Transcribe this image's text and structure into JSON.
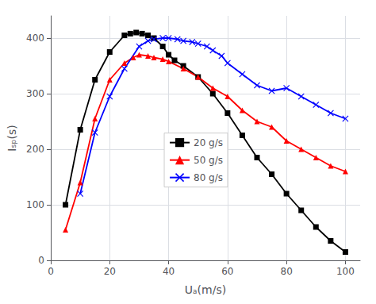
{
  "chart_data": {
    "type": "line",
    "xlabel": "Uₐ(m/s)",
    "ylabel": "Iₛₚ(s)",
    "series": [
      {
        "name": "20 g/s",
        "color": "black",
        "marker": "square",
        "x": [
          5,
          10,
          15,
          20,
          25,
          27,
          29,
          31,
          33,
          35,
          38,
          40,
          42,
          45,
          50,
          55,
          60,
          65,
          70,
          75,
          80,
          85,
          90,
          95,
          100
        ],
        "values": [
          100,
          235,
          325,
          375,
          405,
          408,
          410,
          408,
          405,
          400,
          385,
          370,
          360,
          350,
          330,
          300,
          265,
          225,
          185,
          155,
          120,
          90,
          60,
          35,
          15
        ]
      },
      {
        "name": "50 g/s",
        "color": "red",
        "marker": "triangle",
        "x": [
          5,
          10,
          15,
          20,
          25,
          28,
          30,
          33,
          35,
          38,
          40,
          45,
          50,
          55,
          60,
          65,
          70,
          75,
          80,
          85,
          90,
          95,
          100
        ],
        "values": [
          55,
          140,
          255,
          325,
          355,
          365,
          370,
          368,
          365,
          362,
          358,
          345,
          330,
          310,
          295,
          270,
          250,
          240,
          215,
          200,
          185,
          170,
          160
        ]
      },
      {
        "name": "80 g/s",
        "color": "blue",
        "marker": "x",
        "x": [
          10,
          15,
          20,
          25,
          30,
          33,
          35,
          38,
          40,
          43,
          45,
          48,
          50,
          53,
          55,
          58,
          60,
          65,
          70,
          75,
          80,
          85,
          90,
          95,
          100
        ],
        "values": [
          120,
          230,
          295,
          345,
          385,
          395,
          398,
          400,
          400,
          398,
          395,
          393,
          390,
          385,
          378,
          368,
          355,
          335,
          315,
          305,
          310,
          295,
          280,
          265,
          255
        ]
      }
    ],
    "xlim": [
      0,
      105
    ],
    "ylim": [
      0,
      440
    ],
    "xticks": [
      0,
      20,
      40,
      60,
      80,
      100
    ],
    "yticks": [
      0,
      100,
      200,
      300,
      400
    ],
    "grid": true,
    "legend": "center"
  }
}
